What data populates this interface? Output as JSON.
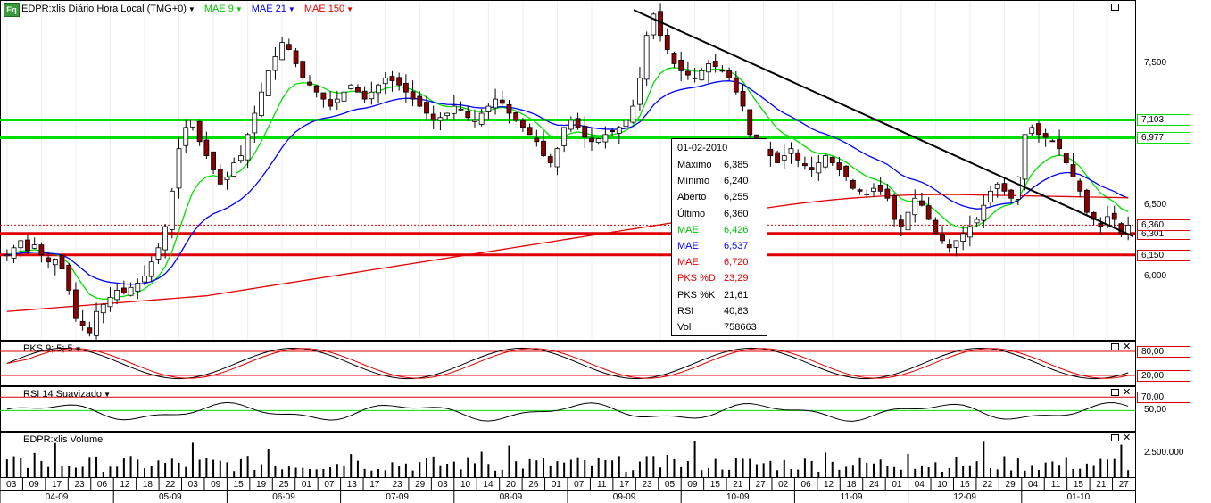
{
  "header": {
    "logo": "Eq",
    "symbol_label": "EDPR:xlis Diário Hora Local (TMG+0)",
    "indicators": [
      {
        "label": "MAE 9",
        "color": "#00e000"
      },
      {
        "label": "MAE 21",
        "color": "#0000ff"
      },
      {
        "label": "MAE 150",
        "color": "#e00000"
      }
    ]
  },
  "panels": {
    "pks_label": "PKS 9; 5; 5",
    "rsi_label": "RSI 14 Suavizado",
    "volume_label": "EDPR:xlis Volume"
  },
  "info_box": {
    "date": "01-02-2010",
    "rows": [
      {
        "label": "Máximo",
        "value": "6,385",
        "color": "#000000"
      },
      {
        "label": "Mínimo",
        "value": "6,240",
        "color": "#000000"
      },
      {
        "label": "Aberto",
        "value": "6,255",
        "color": "#000000"
      },
      {
        "label": "Último",
        "value": "6,360",
        "color": "#000000"
      },
      {
        "label": "MAE",
        "value": "6,426",
        "color": "#00c000"
      },
      {
        "label": "MAE",
        "value": "6,537",
        "color": "#0000ff"
      },
      {
        "label": "MAE",
        "value": "6,720",
        "color": "#e00000"
      },
      {
        "label": "PKS %D",
        "value": "23,29",
        "color": "#e00000"
      },
      {
        "label": "PKS %K",
        "value": "21,61",
        "color": "#000000"
      },
      {
        "label": "RSI",
        "value": "40,83",
        "color": "#000000"
      },
      {
        "label": "Vol",
        "value": "758663",
        "color": "#000000"
      }
    ]
  },
  "chart_data": {
    "type": "candlestick",
    "title": "EDPR:xlis Diário Hora Local (TMG+0)",
    "y_axis": {
      "range": [
        5.55,
        7.95
      ],
      "ticks": [
        "7,500",
        "6,500",
        "6,000"
      ],
      "tick_values": [
        7.5,
        6.5,
        6.0
      ]
    },
    "horizontal_levels": [
      {
        "value": 7.103,
        "label": "7,103",
        "color": "#00e000"
      },
      {
        "value": 6.977,
        "label": "6,977",
        "color": "#00e000"
      },
      {
        "value": 6.301,
        "label": "6,301",
        "color": "#e00000"
      },
      {
        "value": 6.15,
        "label": "6,150",
        "color": "#e00000"
      },
      {
        "value": 6.36,
        "label": "6,360",
        "color": "#e00000"
      }
    ],
    "trendline": {
      "from": {
        "date": "09-09-17",
        "value": 7.88
      },
      "to": {
        "date": "01-10-29",
        "value": 6.28
      }
    },
    "close_series": [
      6.15,
      6.2,
      6.25,
      6.18,
      6.22,
      6.15,
      6.1,
      6.12,
      6.05,
      5.9,
      5.7,
      5.65,
      5.6,
      5.75,
      5.8,
      5.85,
      5.9,
      5.88,
      5.92,
      5.95,
      6.0,
      6.1,
      6.2,
      6.35,
      6.6,
      6.9,
      7.05,
      7.1,
      6.95,
      6.85,
      6.75,
      6.65,
      6.7,
      6.8,
      6.85,
      7.0,
      7.15,
      7.3,
      7.45,
      7.55,
      7.65,
      7.6,
      7.5,
      7.4,
      7.35,
      7.3,
      7.25,
      7.2,
      7.25,
      7.3,
      7.35,
      7.3,
      7.25,
      7.3,
      7.35,
      7.4,
      7.38,
      7.35,
      7.3,
      7.25,
      7.2,
      7.15,
      7.1,
      7.12,
      7.15,
      7.2,
      7.18,
      7.12,
      7.1,
      7.15,
      7.2,
      7.25,
      7.22,
      7.15,
      7.1,
      7.05,
      7.0,
      6.95,
      6.85,
      6.8,
      6.9,
      7.05,
      7.1,
      7.05,
      6.98,
      6.95,
      6.97,
      7.0,
      7.02,
      7.05,
      7.1,
      7.2,
      7.4,
      7.7,
      7.85,
      7.7,
      7.6,
      7.5,
      7.45,
      7.42,
      7.4,
      7.45,
      7.5,
      7.48,
      7.45,
      7.4,
      7.3,
      7.2,
      7.0,
      6.95,
      6.9,
      6.85,
      6.8,
      6.85,
      6.9,
      6.82,
      6.78,
      6.75,
      6.8,
      6.85,
      6.8,
      6.75,
      6.7,
      6.62,
      6.6,
      6.58,
      6.62,
      6.6,
      6.55,
      6.4,
      6.35,
      6.45,
      6.55,
      6.5,
      6.4,
      6.3,
      6.25,
      6.2,
      6.25,
      6.3,
      6.35,
      6.4,
      6.5,
      6.6,
      6.65,
      6.6,
      6.55,
      6.7,
      7.0,
      7.05,
      7.0,
      6.98,
      6.95,
      6.9,
      6.8,
      6.7,
      6.6,
      6.45,
      6.4,
      6.35,
      6.42,
      6.4,
      6.3,
      6.36
    ],
    "indicators": {
      "pks": {
        "params": "9; 5; 5",
        "levels": [
          80,
          20
        ],
        "last_d": 23.29,
        "last_k": 21.61
      },
      "rsi": {
        "params": "14 Suavizado",
        "levels": [
          70,
          50
        ],
        "last": 40.83
      },
      "volume": {
        "label": "EDPR:xlis Volume",
        "tick": "2.500.000",
        "last": 758663
      }
    },
    "x_axis": {
      "days": [
        "03",
        "09",
        "17",
        "23",
        "06",
        "12",
        "18",
        "22",
        "03",
        "09",
        "15",
        "19",
        "25",
        "01",
        "07",
        "13",
        "17",
        "23",
        "29",
        "03",
        "10",
        "14",
        "20",
        "26",
        "01",
        "07",
        "11",
        "17",
        "23",
        "05",
        "09",
        "15",
        "21",
        "27",
        "02",
        "06",
        "12",
        "18",
        "24",
        "01",
        "04",
        "10",
        "16",
        "22",
        "29",
        "04",
        "11",
        "15",
        "21",
        "27"
      ],
      "months": [
        "04-09",
        "05-09",
        "06-09",
        "07-09",
        "08-09",
        "09-09",
        "10-09",
        "11-09",
        "12-09",
        "01-10"
      ]
    }
  }
}
